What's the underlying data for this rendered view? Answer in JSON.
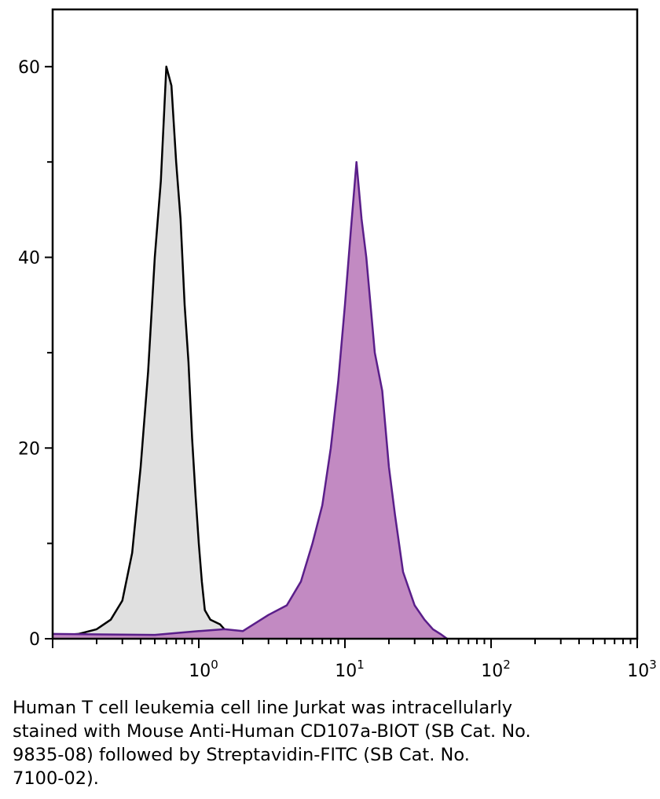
{
  "caption": "Human T cell leukemia cell line Jurkat was intracellularly\nstained with Mouse Anti-Human CD107a-BIOT (SB Cat. No.\n9835-08) followed by Streptavidin-FITC (SB Cat. No.\n7100-02).",
  "chart_data": {
    "type": "area",
    "title": "",
    "xlabel": "",
    "ylabel": "",
    "x_scale": "log",
    "xlim": [
      0.1,
      1000
    ],
    "ylim": [
      0,
      66
    ],
    "y_ticks": [
      0,
      20,
      40,
      60
    ],
    "y_tick_labels": [
      "0",
      "20",
      "40",
      "60"
    ],
    "x_ticks": [
      1,
      10,
      100,
      1000
    ],
    "x_tick_labels": [
      {
        "base": "10",
        "exp": "0"
      },
      {
        "base": "10",
        "exp": "1"
      },
      {
        "base": "10",
        "exp": "2"
      },
      {
        "base": "10",
        "exp": "3"
      }
    ],
    "grid": false,
    "legend": "none",
    "series": [
      {
        "fill": "#e0e0e0",
        "stroke": "#000000",
        "x": [
          0.1,
          0.15,
          0.2,
          0.25,
          0.3,
          0.35,
          0.4,
          0.45,
          0.5,
          0.55,
          0.6,
          0.65,
          0.7,
          0.75,
          0.8,
          0.85,
          0.9,
          0.95,
          1.0,
          1.05,
          1.1,
          1.2,
          1.4,
          1.6,
          1.8
        ],
        "y": [
          0.3,
          0.5,
          1.0,
          2.0,
          4.0,
          9.0,
          18.0,
          28.0,
          40.0,
          48.0,
          60.0,
          58.0,
          50.0,
          44.0,
          35.0,
          29.0,
          21.0,
          15.0,
          10.0,
          6.0,
          3.0,
          2.0,
          1.5,
          0.5,
          0
        ]
      },
      {
        "fill": "#c28ac2",
        "stroke": "#5a1e8a",
        "x": [
          0.1,
          0.5,
          1.0,
          1.5,
          2.0,
          3.0,
          4.0,
          5.0,
          6.0,
          7.0,
          8.0,
          9.0,
          10.0,
          11.0,
          12.0,
          13.0,
          14.0,
          16.0,
          18.0,
          20.0,
          22.0,
          25.0,
          30.0,
          35.0,
          40.0,
          45.0,
          50.0
        ],
        "y": [
          0.5,
          0.4,
          0.8,
          1.0,
          0.8,
          2.5,
          3.5,
          6.0,
          10.0,
          14.0,
          20.0,
          27.0,
          35.0,
          43.0,
          50.0,
          44.0,
          40.0,
          30.0,
          26.0,
          18.0,
          13.0,
          7.0,
          3.5,
          2.0,
          1.0,
          0.5,
          0
        ]
      }
    ]
  }
}
